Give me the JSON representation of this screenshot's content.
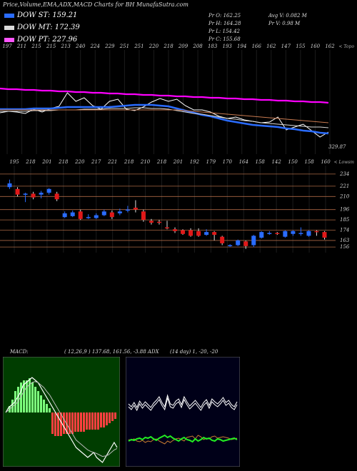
{
  "title": "Price,Volume,EMA,ADX,MACD Charts for BH MunafaSutra.com",
  "legend": [
    {
      "label": "DOW ST: 159.21",
      "color": "#2a6cff"
    },
    {
      "label": "DOW MT: 172.39",
      "color": "#d9d9d9"
    },
    {
      "label": "DOW PT: 227.96",
      "color": "#ff55ff"
    }
  ],
  "info": {
    "pr_o": "Pr  O: 162.25",
    "pr_h": "Pr  H: 164.28",
    "pr_l": "Pr  L: 154.42",
    "pr_c": "Pr  C: 155.68",
    "avg_v": "Avg V: 0.082  M",
    "pr_v": "Pr  V: 0.98  M"
  },
  "chart_data": [
    {
      "type": "line",
      "panel": "ema",
      "axis_tag": "< Topo",
      "last_label": "329.87",
      "top_labels": [
        "197",
        "211",
        "215",
        "215",
        "213",
        "240",
        "224",
        "229",
        "251",
        "251",
        "220",
        "218",
        "209",
        "208",
        "183",
        "193",
        "194",
        "166",
        "162",
        "147",
        "155",
        "160",
        "162"
      ],
      "series": [
        {
          "color": "#ff00ff",
          "values": [
            54,
            55,
            55,
            56,
            56,
            57,
            57,
            58,
            58,
            59,
            59,
            60,
            60,
            61,
            61,
            62,
            62,
            63,
            63,
            64,
            64,
            65,
            65,
            66,
            66,
            67,
            67,
            68,
            68,
            69,
            69,
            70,
            70,
            71,
            71,
            72,
            72,
            73,
            73,
            74
          ]
        },
        {
          "color": "#ffffff",
          "values": [
            88,
            86,
            87,
            89,
            83,
            87,
            82,
            79,
            60,
            72,
            67,
            78,
            83,
            72,
            69,
            83,
            85,
            80,
            73,
            68,
            72,
            69,
            78,
            84,
            84,
            87,
            93,
            96,
            94,
            98,
            100,
            102,
            101,
            94,
            112,
            108,
            104,
            113,
            122,
            115
          ]
        },
        {
          "color": "#2a6cff",
          "values": [
            83,
            83,
            83,
            83,
            82,
            82,
            82,
            81,
            80,
            80,
            80,
            80,
            80,
            80,
            79,
            78,
            77,
            77,
            77,
            78,
            79,
            82,
            85,
            88,
            91,
            93,
            96,
            99,
            101,
            103,
            105,
            106,
            107,
            108,
            110,
            111,
            113,
            114,
            116,
            117
          ]
        },
        {
          "color": "#d9d9d9",
          "values": [
            86,
            86,
            86,
            86,
            85,
            85,
            85,
            84,
            84,
            84,
            83,
            83,
            83,
            82,
            82,
            82,
            81,
            81,
            82,
            82,
            83,
            85,
            87,
            89,
            90,
            92,
            94,
            96,
            97,
            99,
            100,
            102,
            103,
            104,
            105,
            106,
            107,
            108,
            108,
            109
          ]
        },
        {
          "color": "#c87a50",
          "values": [
            84,
            84,
            84,
            84,
            84,
            84,
            84,
            84,
            84,
            84,
            84,
            84,
            84,
            84,
            84,
            84,
            84,
            84,
            84,
            84,
            84,
            84,
            85,
            86,
            87,
            88,
            89,
            90,
            91,
            92,
            93,
            94,
            95,
            96,
            97,
            98,
            99,
            100,
            101,
            102
          ]
        }
      ]
    },
    {
      "type": "candlestick",
      "panel": "price",
      "axis_tag": "< Lowsm",
      "top_labels": [
        "195",
        "218",
        "201",
        "218",
        "220",
        "217",
        "221",
        "218",
        "210",
        "218",
        "201",
        "192",
        "179",
        "170",
        "164",
        "158",
        "142",
        "150",
        "158",
        "160"
      ],
      "right_labels": [
        "234",
        "221",
        "210",
        "196",
        "185",
        "174",
        "163",
        "156"
      ],
      "ylim": [
        150,
        240
      ],
      "candles": [
        {
          "o": 220,
          "c": 224,
          "h": 228,
          "l": 218
        },
        {
          "o": 218,
          "c": 212,
          "h": 220,
          "l": 210
        },
        {
          "o": 212,
          "c": 213,
          "h": 214,
          "l": 204
        },
        {
          "o": 213,
          "c": 209,
          "h": 215,
          "l": 207
        },
        {
          "o": 212,
          "c": 214,
          "h": 216,
          "l": 208
        },
        {
          "o": 214,
          "c": 218,
          "h": 219,
          "l": 212
        },
        {
          "o": 213,
          "c": 207,
          "h": 215,
          "l": 205
        },
        {
          "o": 188,
          "c": 192,
          "h": 194,
          "l": 187
        },
        {
          "o": 189,
          "c": 193,
          "h": 195,
          "l": 188
        },
        {
          "o": 194,
          "c": 186,
          "h": 196,
          "l": 185
        },
        {
          "o": 187,
          "c": 188,
          "h": 191,
          "l": 186
        },
        {
          "o": 187,
          "c": 190,
          "h": 192,
          "l": 186
        },
        {
          "o": 190,
          "c": 194,
          "h": 196,
          "l": 189
        },
        {
          "o": 193,
          "c": 188,
          "h": 195,
          "l": 186
        },
        {
          "o": 192,
          "c": 194,
          "h": 197,
          "l": 190
        },
        {
          "o": 195,
          "c": 196,
          "h": 200,
          "l": 193
        },
        {
          "o": 198,
          "c": 196,
          "h": 206,
          "l": 193
        },
        {
          "o": 194,
          "c": 185,
          "h": 196,
          "l": 183
        },
        {
          "o": 184,
          "c": 182,
          "h": 186,
          "l": 180
        },
        {
          "o": 183,
          "c": 182,
          "h": 185,
          "l": 180
        },
        {
          "o": 177,
          "c": 176,
          "h": 184,
          "l": 175
        },
        {
          "o": 175,
          "c": 173,
          "h": 177,
          "l": 171
        },
        {
          "o": 174,
          "c": 170,
          "h": 175,
          "l": 169
        },
        {
          "o": 174,
          "c": 168,
          "h": 176,
          "l": 167
        },
        {
          "o": 173,
          "c": 168,
          "h": 176,
          "l": 167
        },
        {
          "o": 169,
          "c": 172,
          "h": 175,
          "l": 168
        },
        {
          "o": 172,
          "c": 169,
          "h": 173,
          "l": 163
        },
        {
          "o": 167,
          "c": 160,
          "h": 168,
          "l": 158
        },
        {
          "o": 158,
          "c": 158,
          "h": 159,
          "l": 156
        },
        {
          "o": 158,
          "c": 163,
          "h": 164,
          "l": 157
        },
        {
          "o": 162,
          "c": 157,
          "h": 163,
          "l": 154
        },
        {
          "o": 158,
          "c": 168,
          "h": 169,
          "l": 156
        },
        {
          "o": 166,
          "c": 172,
          "h": 173,
          "l": 165
        },
        {
          "o": 171,
          "c": 171,
          "h": 173,
          "l": 169
        },
        {
          "o": 171,
          "c": 170,
          "h": 172,
          "l": 169
        },
        {
          "o": 167,
          "c": 173,
          "h": 174,
          "l": 166
        },
        {
          "o": 170,
          "c": 173,
          "h": 174,
          "l": 168
        },
        {
          "o": 171,
          "c": 171,
          "h": 177,
          "l": 168
        },
        {
          "o": 168,
          "c": 173,
          "h": 174,
          "l": 167
        },
        {
          "o": 173,
          "c": 172,
          "h": 174,
          "l": 168
        },
        {
          "o": 172,
          "c": 166,
          "h": 173,
          "l": 164
        }
      ]
    },
    {
      "type": "macd",
      "panel": "macd",
      "label": "MACD:",
      "params": "( 12,26,9 ) 137.68,  161.56,  -3.88 ADX",
      "histogram": [
        0,
        3,
        6,
        10,
        12,
        14,
        15,
        15,
        16,
        14,
        12,
        10,
        8,
        6,
        4,
        2,
        -10,
        -11,
        -11,
        -11,
        -10,
        -10,
        -10,
        -10,
        -9,
        -9,
        -9,
        -9,
        -8,
        -8,
        -8,
        -8,
        -8,
        -7,
        -7,
        -6,
        -5,
        -4,
        -3
      ],
      "macd_line": [
        0.0,
        0.1,
        0.15,
        0.2,
        0.3,
        0.4,
        0.55,
        0.6,
        0.65,
        0.7,
        0.65,
        0.6,
        0.5,
        0.4,
        0.3,
        0.2,
        0.1,
        0.0,
        -0.1,
        -0.2,
        -0.3,
        -0.4,
        -0.5,
        -0.6,
        -0.7,
        -0.75,
        -0.8,
        -0.85,
        -0.9,
        -0.85,
        -0.8,
        -0.9,
        -0.95,
        -1.0,
        -0.9,
        -0.8,
        -0.7,
        -0.6,
        -0.7
      ],
      "signal_line": [
        0.0,
        0.05,
        0.1,
        0.15,
        0.2,
        0.3,
        0.4,
        0.5,
        0.55,
        0.6,
        0.62,
        0.6,
        0.55,
        0.5,
        0.42,
        0.35,
        0.25,
        0.15,
        0.05,
        -0.05,
        -0.15,
        -0.25,
        -0.35,
        -0.45,
        -0.55,
        -0.6,
        -0.65,
        -0.7,
        -0.75,
        -0.78,
        -0.8,
        -0.82,
        -0.85,
        -0.88,
        -0.87,
        -0.85,
        -0.8,
        -0.75,
        -0.72
      ]
    },
    {
      "type": "adx",
      "panel": "adx",
      "params": "(14  day) 1,  -20,  -20",
      "white_a": [
        40,
        44,
        38,
        45,
        36,
        42,
        37,
        41,
        45,
        39,
        35,
        30,
        38,
        44,
        28,
        40,
        42,
        36,
        33,
        41,
        30,
        37,
        43,
        39,
        35,
        40,
        45,
        38,
        34,
        42,
        33,
        37,
        40,
        36,
        31,
        38,
        35,
        41,
        44,
        37
      ],
      "white_b": [
        36,
        40,
        34,
        41,
        32,
        38,
        33,
        37,
        41,
        35,
        31,
        26,
        34,
        40,
        24,
        36,
        38,
        32,
        29,
        37,
        26,
        33,
        39,
        35,
        31,
        36,
        41,
        34,
        30,
        38,
        29,
        33,
        36,
        32,
        27,
        34,
        31,
        37,
        40,
        33
      ],
      "green": [
        88,
        86,
        87,
        85,
        84,
        86,
        83,
        84,
        82,
        85,
        87,
        84,
        82,
        80,
        83,
        81,
        84,
        86,
        88,
        85,
        83,
        86,
        87,
        89,
        85,
        88,
        86,
        83,
        85,
        84,
        87,
        88,
        85,
        86,
        88,
        87,
        86,
        85,
        84,
        86
      ],
      "orange": [
        86,
        87,
        85,
        88,
        89,
        87,
        90,
        88,
        89,
        86,
        85,
        88,
        90,
        92,
        88,
        90,
        87,
        85,
        84,
        86,
        88,
        83,
        82,
        81,
        85,
        80,
        82,
        86,
        84,
        85,
        82,
        81,
        84,
        83,
        82,
        83,
        84,
        86,
        85,
        84
      ]
    }
  ]
}
